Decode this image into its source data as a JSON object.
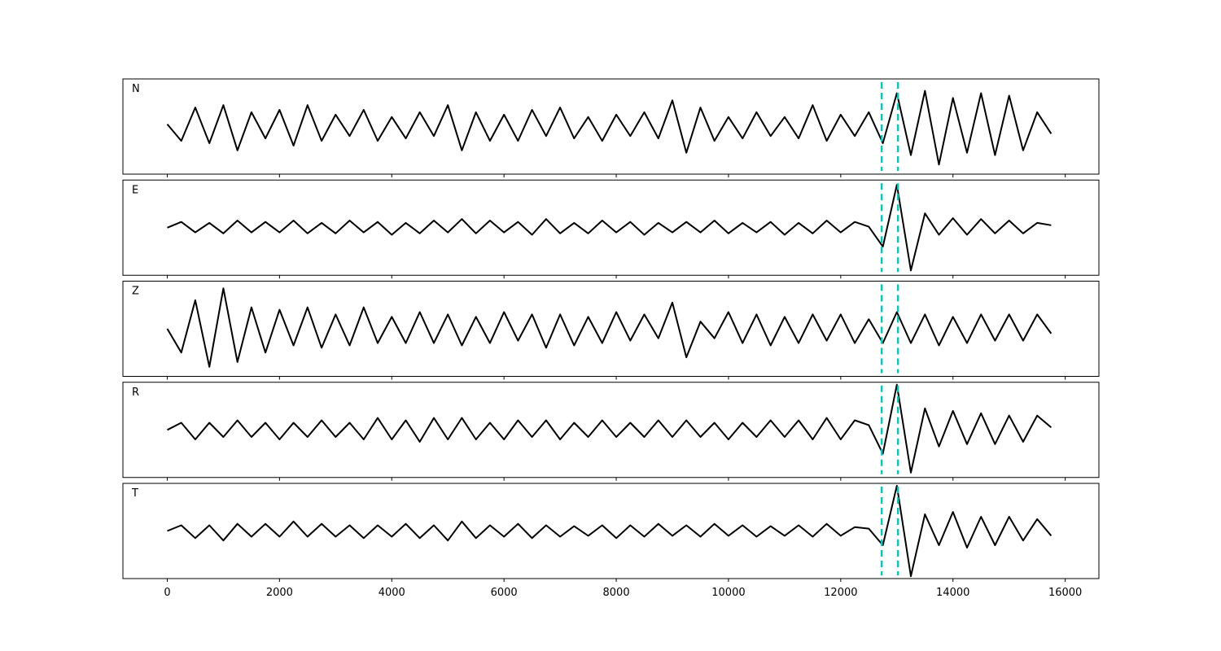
{
  "chart_data": {
    "type": "line",
    "layout": "stacked",
    "x": [
      0,
      250,
      500,
      750,
      1000,
      1250,
      1500,
      1750,
      2000,
      2250,
      2500,
      2750,
      3000,
      3250,
      3500,
      3750,
      4000,
      4250,
      4500,
      4750,
      5000,
      5250,
      5500,
      5750,
      6000,
      6250,
      6500,
      6750,
      7000,
      7250,
      7500,
      7750,
      8000,
      8250,
      8500,
      8750,
      9000,
      9250,
      9500,
      9750,
      10000,
      10250,
      10500,
      10750,
      11000,
      11250,
      11500,
      11750,
      12000,
      12250,
      12500,
      12750,
      13000,
      13250,
      13500,
      13750,
      14000,
      14250,
      14500,
      14750,
      15000,
      15250,
      15500,
      15750
    ],
    "xlim": [
      -790,
      16600
    ],
    "xticks": [
      0,
      2000,
      4000,
      6000,
      8000,
      10000,
      12000,
      14000,
      16000
    ],
    "ylim": [
      -1,
      1
    ],
    "vlines": [
      12730,
      13020
    ],
    "vline_color": "#17bfb4",
    "series": [
      {
        "name": "N",
        "color": "#000000",
        "values": [
          0.05,
          -0.3,
          0.4,
          -0.35,
          0.45,
          -0.5,
          0.3,
          -0.25,
          0.35,
          -0.4,
          0.45,
          -0.3,
          0.25,
          -0.2,
          0.35,
          -0.3,
          0.2,
          -0.25,
          0.3,
          -0.2,
          0.45,
          -0.5,
          0.3,
          -0.3,
          0.25,
          -0.3,
          0.35,
          -0.2,
          0.4,
          -0.25,
          0.2,
          -0.3,
          0.25,
          -0.2,
          0.3,
          -0.25,
          0.55,
          -0.55,
          0.4,
          -0.3,
          0.2,
          -0.25,
          0.3,
          -0.2,
          0.2,
          -0.25,
          0.45,
          -0.3,
          0.25,
          -0.2,
          0.3,
          -0.35,
          0.7,
          -0.6,
          0.75,
          -0.8,
          0.6,
          -0.55,
          0.7,
          -0.6,
          0.65,
          -0.5,
          0.3,
          -0.15
        ]
      },
      {
        "name": "E",
        "color": "#000000",
        "values": [
          0,
          0.12,
          -0.1,
          0.1,
          -0.12,
          0.15,
          -0.1,
          0.12,
          -0.1,
          0.15,
          -0.12,
          0.1,
          -0.12,
          0.15,
          -0.1,
          0.12,
          -0.15,
          0.1,
          -0.12,
          0.15,
          -0.1,
          0.18,
          -0.12,
          0.15,
          -0.1,
          0.12,
          -0.15,
          0.18,
          -0.12,
          0.1,
          -0.12,
          0.15,
          -0.1,
          0.12,
          -0.15,
          0.1,
          -0.1,
          0.12,
          -0.1,
          0.15,
          -0.12,
          0.1,
          -0.1,
          0.12,
          -0.15,
          0.1,
          -0.12,
          0.15,
          -0.1,
          0.12,
          0.02,
          -0.4,
          0.9,
          -0.9,
          0.3,
          -0.15,
          0.2,
          -0.15,
          0.18,
          -0.12,
          0.15,
          -0.12,
          0.1,
          0.05
        ]
      },
      {
        "name": "Z",
        "color": "#000000",
        "values": [
          0,
          -0.5,
          0.6,
          -0.8,
          0.85,
          -0.7,
          0.45,
          -0.5,
          0.4,
          -0.35,
          0.45,
          -0.4,
          0.3,
          -0.35,
          0.45,
          -0.3,
          0.25,
          -0.3,
          0.35,
          -0.3,
          0.3,
          -0.35,
          0.25,
          -0.3,
          0.35,
          -0.25,
          0.3,
          -0.4,
          0.3,
          -0.35,
          0.25,
          -0.3,
          0.35,
          -0.25,
          0.3,
          -0.2,
          0.55,
          -0.6,
          0.15,
          -0.2,
          0.35,
          -0.3,
          0.3,
          -0.35,
          0.25,
          -0.3,
          0.3,
          -0.25,
          0.3,
          -0.3,
          0.2,
          -0.3,
          0.35,
          -0.3,
          0.3,
          -0.35,
          0.25,
          -0.3,
          0.3,
          -0.25,
          0.3,
          -0.25,
          0.3,
          -0.1
        ]
      },
      {
        "name": "R",
        "color": "#000000",
        "values": [
          0,
          0.15,
          -0.2,
          0.15,
          -0.15,
          0.2,
          -0.15,
          0.15,
          -0.2,
          0.15,
          -0.15,
          0.2,
          -0.15,
          0.15,
          -0.2,
          0.25,
          -0.2,
          0.2,
          -0.25,
          0.25,
          -0.2,
          0.25,
          -0.2,
          0.15,
          -0.2,
          0.2,
          -0.15,
          0.2,
          -0.2,
          0.15,
          -0.15,
          0.2,
          -0.15,
          0.15,
          -0.15,
          0.2,
          -0.15,
          0.2,
          -0.15,
          0.15,
          -0.2,
          0.15,
          -0.15,
          0.2,
          -0.15,
          0.2,
          -0.2,
          0.25,
          -0.2,
          0.2,
          0.1,
          -0.5,
          0.95,
          -0.9,
          0.45,
          -0.35,
          0.4,
          -0.3,
          0.35,
          -0.3,
          0.3,
          -0.25,
          0.3,
          0.05
        ]
      },
      {
        "name": "T",
        "color": "#000000",
        "values": [
          0,
          0.12,
          -0.15,
          0.12,
          -0.2,
          0.15,
          -0.12,
          0.15,
          -0.12,
          0.2,
          -0.12,
          0.15,
          -0.12,
          0.12,
          -0.15,
          0.12,
          -0.12,
          0.15,
          -0.15,
          0.12,
          -0.2,
          0.2,
          -0.15,
          0.12,
          -0.12,
          0.15,
          -0.15,
          0.12,
          -0.12,
          0.1,
          -0.1,
          0.12,
          -0.15,
          0.12,
          -0.12,
          0.15,
          -0.1,
          0.12,
          -0.12,
          0.15,
          -0.1,
          0.12,
          -0.12,
          0.1,
          -0.1,
          0.12,
          -0.12,
          0.15,
          -0.1,
          0.08,
          0.05,
          -0.3,
          0.95,
          -0.95,
          0.35,
          -0.3,
          0.4,
          -0.35,
          0.3,
          -0.3,
          0.3,
          -0.2,
          0.25,
          -0.1
        ]
      }
    ]
  }
}
